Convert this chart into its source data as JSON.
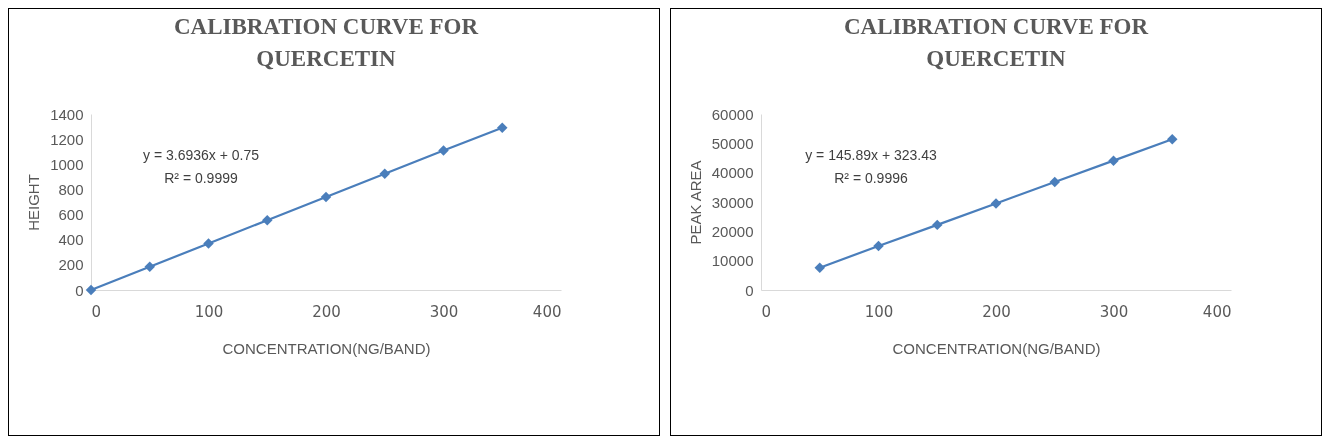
{
  "chart_data": [
    {
      "type": "line",
      "title": "CALIBRATION CURVE FOR QUERCETIN",
      "xlabel": "CONCENTRATION(NG/BAND)",
      "ylabel": "HEIGHT",
      "x": [
        0,
        50,
        100,
        150,
        200,
        250,
        300,
        350
      ],
      "series": [
        {
          "color": "#4a7ebb",
          "values": [
            0,
            185,
            370,
            555,
            740,
            925,
            1110,
            1290
          ]
        }
      ],
      "xlim": [
        0,
        400
      ],
      "xticks": [
        0,
        100,
        200,
        300,
        400
      ],
      "ylim": [
        0,
        1400
      ],
      "yticks": [
        0,
        200,
        400,
        600,
        800,
        1000,
        1200,
        1400
      ],
      "marker": "diamond",
      "line_style": "solid",
      "grid": false,
      "annotations": [
        "y = 3.6936x + 0.75",
        "R² = 0.9999"
      ]
    },
    {
      "type": "line",
      "title": "CALIBRATION CURVE FOR QUERCETIN",
      "xlabel": "CONCENTRATION(NG/BAND)",
      "ylabel": "PEAK AREA",
      "x": [
        50,
        100,
        150,
        200,
        250,
        300,
        350
      ],
      "series": [
        {
          "color": "#4a7ebb",
          "values": [
            7600,
            15000,
            22200,
            29500,
            36800,
            44100,
            51400
          ]
        }
      ],
      "xlim": [
        0,
        400
      ],
      "xticks": [
        0,
        100,
        200,
        300,
        400
      ],
      "ylim": [
        0,
        60000
      ],
      "yticks": [
        0,
        10000,
        20000,
        30000,
        40000,
        50000,
        60000
      ],
      "marker": "diamond",
      "line_style": "solid",
      "grid": false,
      "annotations": [
        "y = 145.89x + 323.43",
        "R² = 0.9996"
      ]
    }
  ]
}
